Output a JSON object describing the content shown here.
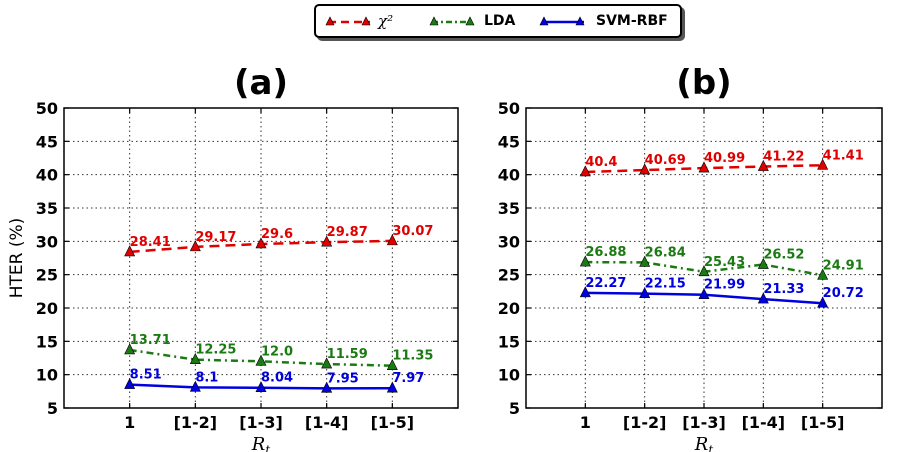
{
  "legend": {
    "entries": [
      {
        "label": "χ²",
        "color": "#e00000",
        "style": "dashed"
      },
      {
        "label": "LDA",
        "color": "#1b7a12",
        "style": "dashdot"
      },
      {
        "label": "SVM-RBF",
        "color": "#0000e0",
        "style": "solid"
      }
    ]
  },
  "chart_data": [
    {
      "type": "line",
      "title": "(a)",
      "ylabel": "HTER (%)",
      "xlabel": "R_t",
      "categories": [
        "1",
        "[1-2]",
        "[1-3]",
        "[1-4]",
        "[1-5]"
      ],
      "ylim": [
        5,
        50
      ],
      "yticks": [
        5,
        10,
        15,
        20,
        25,
        30,
        35,
        40,
        45,
        50
      ],
      "grid": true,
      "series": [
        {
          "name": "χ²",
          "color": "#e00000",
          "style": "dashed",
          "values": [
            28.41,
            29.17,
            29.6,
            29.87,
            30.07
          ],
          "labels": [
            "28.41",
            "29.17",
            "29.6",
            "29.87",
            "30.07"
          ]
        },
        {
          "name": "LDA",
          "color": "#1b7a12",
          "style": "dashdot",
          "values": [
            13.71,
            12.25,
            12.0,
            11.59,
            11.35
          ],
          "labels": [
            "13.71",
            "12.25",
            "12.0",
            "11.59",
            "11.35"
          ]
        },
        {
          "name": "SVM-RBF",
          "color": "#0000e0",
          "style": "solid",
          "values": [
            8.51,
            8.1,
            8.04,
            7.95,
            7.97
          ],
          "labels": [
            "8.51",
            "8.1",
            "8.04",
            "7.95",
            "7.97"
          ]
        }
      ]
    },
    {
      "type": "line",
      "title": "(b)",
      "ylabel": "",
      "xlabel": "R_t",
      "categories": [
        "1",
        "[1-2]",
        "[1-3]",
        "[1-4]",
        "[1-5]"
      ],
      "ylim": [
        5,
        50
      ],
      "yticks": [
        5,
        10,
        15,
        20,
        25,
        30,
        35,
        40,
        45,
        50
      ],
      "grid": true,
      "series": [
        {
          "name": "χ²",
          "color": "#e00000",
          "style": "dashed",
          "values": [
            40.4,
            40.69,
            40.99,
            41.22,
            41.41
          ],
          "labels": [
            "40.4",
            "40.69",
            "40.99",
            "41.22",
            "41.41"
          ]
        },
        {
          "name": "LDA",
          "color": "#1b7a12",
          "style": "dashdot",
          "values": [
            26.88,
            26.84,
            25.43,
            26.52,
            24.91
          ],
          "labels": [
            "26.88",
            "26.84",
            "25.43",
            "26.52",
            "24.91"
          ]
        },
        {
          "name": "SVM-RBF",
          "color": "#0000e0",
          "style": "solid",
          "values": [
            22.27,
            22.15,
            21.99,
            21.33,
            20.72
          ],
          "labels": [
            "22.27",
            "22.15",
            "21.99",
            "21.33",
            "20.72"
          ]
        }
      ]
    }
  ]
}
